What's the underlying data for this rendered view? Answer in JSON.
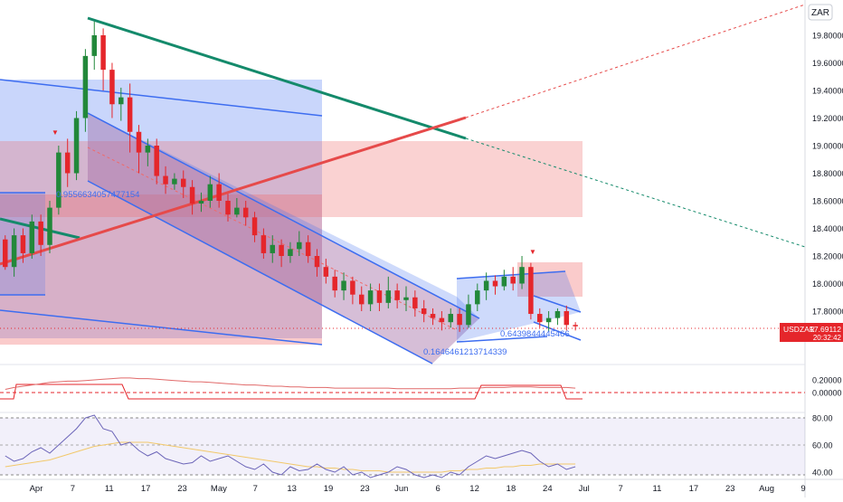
{
  "currency_label": "ZAR",
  "ticker": {
    "symbol": "USDZAR",
    "price": "17.69112",
    "countdown": "20:32:42"
  },
  "colors": {
    "up": "#22883a",
    "down": "#e5262b",
    "blue_zone": "#3d6df0",
    "red_zone": "#f06a6a",
    "trend_green": "#148a6b",
    "trend_red": "#e64a4a",
    "osc_line": "#e16a6a",
    "rsi_line": "#6b64b8",
    "rsi_ma": "#f2c86a",
    "price_tag": "#e5262b"
  },
  "fib_labels": {
    "a": "0.9556634057477154",
    "b": "0.1646461213714339",
    "c": "0.6439844445466"
  },
  "markers": {
    "down_triangle": "▼"
  },
  "chart_data": [
    {
      "type": "candlestick",
      "y_axis": {
        "min": 17.55,
        "max": 19.93,
        "ticks": [
          "19.80000",
          "19.60000",
          "19.40000",
          "19.20000",
          "19.00000",
          "18.80000",
          "18.60000",
          "18.40000",
          "18.20000",
          "18.00000",
          "17.80000"
        ]
      },
      "x_ticks": [
        "Apr",
        "7",
        "11",
        "17",
        "23",
        "May",
        "7",
        "13",
        "19",
        "23",
        "Jun",
        "6",
        "12",
        "18",
        "24",
        "Jul",
        "7",
        "11",
        "17",
        "23",
        "Aug",
        "9"
      ],
      "last_price": 17.69112,
      "candles": [
        [
          18.32,
          18.12,
          18.35,
          18.1
        ],
        [
          18.12,
          18.35,
          18.4,
          18.05
        ],
        [
          18.35,
          18.22,
          18.4,
          18.15
        ],
        [
          18.22,
          18.45,
          18.5,
          18.18
        ],
        [
          18.45,
          18.28,
          18.5,
          18.2
        ],
        [
          18.28,
          18.55,
          18.6,
          18.22
        ],
        [
          18.55,
          18.95,
          19.0,
          18.5
        ],
        [
          18.95,
          18.8,
          19.05,
          18.7
        ],
        [
          18.8,
          19.2,
          19.25,
          18.75
        ],
        [
          19.2,
          19.65,
          19.7,
          19.1
        ],
        [
          19.65,
          19.8,
          19.9,
          19.55
        ],
        [
          19.8,
          19.55,
          19.85,
          19.4
        ],
        [
          19.55,
          19.3,
          19.6,
          19.2
        ],
        [
          19.3,
          19.35,
          19.42,
          19.18
        ],
        [
          19.35,
          19.1,
          19.45,
          18.95
        ],
        [
          19.1,
          18.95,
          19.15,
          18.8
        ],
        [
          18.95,
          19.0,
          19.05,
          18.85
        ],
        [
          19.0,
          18.78,
          19.05,
          18.72
        ],
        [
          18.78,
          18.72,
          18.85,
          18.65
        ],
        [
          18.72,
          18.76,
          18.8,
          18.68
        ],
        [
          18.76,
          18.7,
          18.82,
          18.62
        ],
        [
          18.7,
          18.58,
          18.75,
          18.5
        ],
        [
          18.58,
          18.6,
          18.66,
          18.52
        ],
        [
          18.6,
          18.72,
          18.78,
          18.55
        ],
        [
          18.72,
          18.6,
          18.8,
          18.55
        ],
        [
          18.6,
          18.5,
          18.65,
          18.45
        ],
        [
          18.5,
          18.55,
          18.62,
          18.48
        ],
        [
          18.55,
          18.48,
          18.6,
          18.42
        ],
        [
          18.48,
          18.35,
          18.52,
          18.3
        ],
        [
          18.35,
          18.22,
          18.4,
          18.18
        ],
        [
          18.22,
          18.28,
          18.35,
          18.15
        ],
        [
          18.28,
          18.2,
          18.32,
          18.12
        ],
        [
          18.2,
          18.25,
          18.3,
          18.15
        ],
        [
          18.25,
          18.3,
          18.38,
          18.2
        ],
        [
          18.3,
          18.2,
          18.35,
          18.15
        ],
        [
          18.2,
          18.12,
          18.25,
          18.05
        ],
        [
          18.12,
          18.05,
          18.18,
          18.0
        ],
        [
          18.05,
          17.95,
          18.1,
          17.9
        ],
        [
          17.95,
          18.02,
          18.08,
          17.88
        ],
        [
          18.02,
          17.92,
          18.05,
          17.85
        ],
        [
          17.92,
          17.85,
          17.98,
          17.8
        ],
        [
          17.85,
          17.95,
          18.0,
          17.8
        ],
        [
          17.95,
          17.86,
          18.0,
          17.8
        ],
        [
          17.86,
          17.95,
          18.05,
          17.82
        ],
        [
          17.95,
          17.88,
          18.0,
          17.82
        ],
        [
          17.88,
          17.9,
          17.98,
          17.8
        ],
        [
          17.9,
          17.82,
          17.95,
          17.76
        ],
        [
          17.82,
          17.78,
          17.88,
          17.72
        ],
        [
          17.78,
          17.75,
          17.82,
          17.7
        ],
        [
          17.75,
          17.72,
          17.8,
          17.66
        ],
        [
          17.72,
          17.78,
          17.82,
          17.68
        ],
        [
          17.78,
          17.7,
          17.82,
          17.65
        ],
        [
          17.7,
          17.85,
          17.92,
          17.68
        ],
        [
          17.85,
          17.95,
          18.0,
          17.8
        ],
        [
          17.95,
          18.02,
          18.08,
          17.88
        ],
        [
          18.02,
          17.98,
          18.06,
          17.92
        ],
        [
          17.98,
          18.05,
          18.1,
          17.95
        ],
        [
          18.05,
          18.0,
          18.12,
          17.95
        ],
        [
          18.0,
          18.12,
          18.2,
          17.96
        ],
        [
          18.12,
          17.78,
          18.15,
          17.74
        ],
        [
          17.78,
          17.72,
          17.82,
          17.68
        ],
        [
          17.72,
          17.75,
          17.8,
          17.65
        ],
        [
          17.75,
          17.8,
          17.82,
          17.7
        ],
        [
          17.8,
          17.7,
          17.84,
          17.66
        ],
        [
          17.7,
          17.69,
          17.72,
          17.66
        ]
      ]
    },
    {
      "type": "line",
      "name": "oscillator",
      "y_ticks": [
        "0.20000",
        "0.00000"
      ],
      "values": [
        0.05,
        0.08,
        0.1,
        0.12,
        0.14,
        0.16,
        0.17,
        0.18,
        0.18,
        0.19,
        0.2,
        0.21,
        0.22,
        0.23,
        0.23,
        0.22,
        0.22,
        0.21,
        0.2,
        0.19,
        0.18,
        0.17,
        0.17,
        0.16,
        0.15,
        0.14,
        0.13,
        0.12,
        0.12,
        0.11,
        0.1,
        0.1,
        0.09,
        0.09,
        0.08,
        0.08,
        0.08,
        0.07,
        0.07,
        0.07,
        0.07,
        0.07,
        0.07,
        0.07,
        0.06,
        0.06,
        0.06,
        0.06,
        0.06,
        0.06,
        0.06,
        0.07,
        0.07,
        0.07,
        0.08,
        0.08,
        0.08,
        0.09,
        0.09,
        0.09,
        0.08,
        0.08,
        0.08,
        0.08,
        0.07
      ]
    },
    {
      "type": "line",
      "name": "rsi",
      "y_ticks": [
        "80.00",
        "60.00",
        "40.00"
      ],
      "values": [
        52,
        48,
        50,
        55,
        58,
        54,
        60,
        66,
        72,
        80,
        82,
        72,
        70,
        60,
        62,
        56,
        52,
        55,
        50,
        48,
        46,
        47,
        52,
        48,
        50,
        52,
        48,
        44,
        42,
        46,
        40,
        38,
        44,
        41,
        42,
        46,
        42,
        40,
        44,
        38,
        40,
        36,
        38,
        40,
        44,
        42,
        38,
        36,
        38,
        36,
        40,
        38,
        44,
        48,
        52,
        50,
        52,
        54,
        56,
        54,
        48,
        44,
        46,
        42,
        44
      ],
      "ma_values": [
        44,
        45,
        46,
        47,
        48,
        49,
        51,
        53,
        55,
        57,
        59,
        60,
        61,
        62,
        62,
        62,
        62,
        61,
        60,
        59,
        58,
        57,
        56,
        55,
        54,
        53,
        52,
        51,
        50,
        49,
        48,
        47,
        46,
        45,
        44,
        44,
        43,
        43,
        42,
        42,
        41,
        41,
        41,
        40,
        40,
        40,
        40,
        40,
        40,
        40,
        41,
        41,
        42,
        42,
        43,
        43,
        44,
        44,
        45,
        45,
        46,
        46,
        46,
        46,
        46
      ]
    }
  ]
}
